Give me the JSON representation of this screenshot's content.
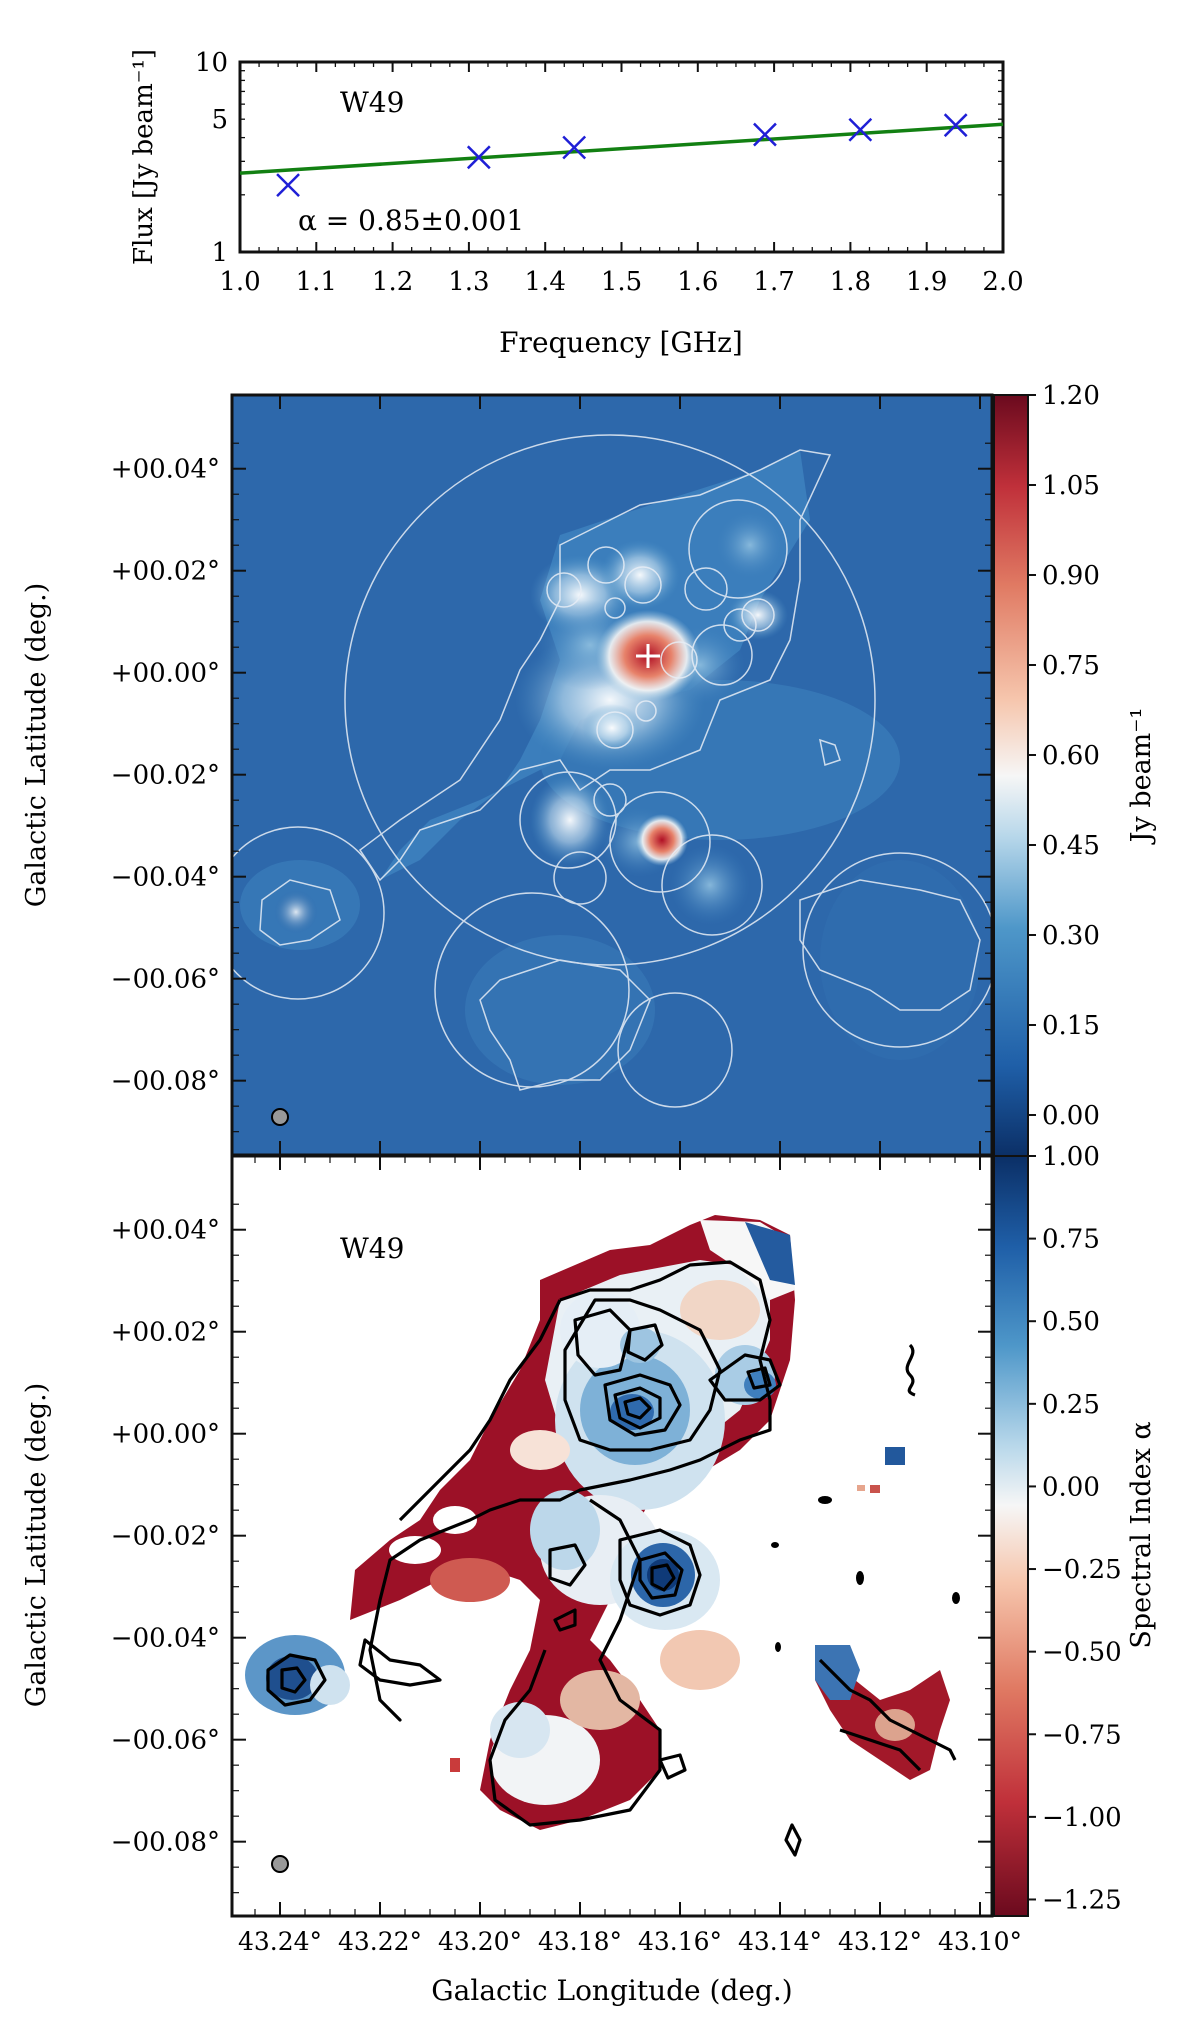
{
  "chart_data": [
    {
      "type": "scatter",
      "label": "W49",
      "annotation": "α = 0.85±0.001",
      "xlabel": "Frequency [GHz]",
      "ylabel": "Flux [Jy beam⁻¹]",
      "xlim": [
        1.0,
        2.0
      ],
      "ylim": [
        1,
        10
      ],
      "yscale": "log",
      "x_ticks": [
        "1.0",
        "1.1",
        "1.2",
        "1.3",
        "1.4",
        "1.5",
        "1.6",
        "1.7",
        "1.8",
        "1.9",
        "2.0"
      ],
      "y_ticks": [
        "1",
        "5",
        "10"
      ],
      "points": [
        {
          "x": 1.063,
          "y": 2.25
        },
        {
          "x": 1.313,
          "y": 3.15
        },
        {
          "x": 1.438,
          "y": 3.55
        },
        {
          "x": 1.688,
          "y": 4.15
        },
        {
          "x": 1.813,
          "y": 4.4
        },
        {
          "x": 1.938,
          "y": 4.65
        }
      ],
      "fit": {
        "x": [
          1.0,
          2.0
        ],
        "y": [
          2.6,
          4.7
        ]
      },
      "colors": {
        "points": "#1f1fd6",
        "fit": "#128012"
      }
    },
    {
      "type": "heatmap",
      "ylabel": "Galactic Latitude (deg.)",
      "y_ticks": [
        "+00.04°",
        "+00.02°",
        "+00.00°",
        "−00.02°",
        "−00.04°",
        "−00.06°",
        "−00.08°"
      ],
      "colorbar_label": "Jy beam⁻¹",
      "colorbar_ticks": [
        "1.20",
        "1.05",
        "0.90",
        "0.75",
        "0.60",
        "0.45",
        "0.30",
        "0.15",
        "0.00"
      ],
      "colorbar_range": [
        -0.07,
        1.2
      ],
      "colormap": "RdBu_r",
      "colors": {
        "low": "#0d3b7a",
        "high": "#7b0a1e"
      }
    },
    {
      "type": "heatmap",
      "label": "W49",
      "xlabel": "Galactic Longitude (deg.)",
      "ylabel": "Galactic Latitude (deg.)",
      "x_ticks": [
        "43.24°",
        "43.22°",
        "43.20°",
        "43.18°",
        "43.16°",
        "43.14°",
        "43.12°",
        "43.10°"
      ],
      "y_ticks": [
        "+00.04°",
        "+00.02°",
        "+00.00°",
        "−00.02°",
        "−00.04°",
        "−00.06°",
        "−00.08°"
      ],
      "colorbar_label": "Spectral Index α",
      "colorbar_ticks": [
        "1.00",
        "0.75",
        "0.50",
        "0.25",
        "0.00",
        "−0.25",
        "−0.50",
        "−0.75",
        "−1.00",
        "−1.25"
      ],
      "colorbar_range": [
        -1.3,
        1.0
      ],
      "colormap": "RdBu",
      "colors": {
        "negative": "#7b0a1e",
        "positive": "#0d3b7a"
      }
    }
  ]
}
